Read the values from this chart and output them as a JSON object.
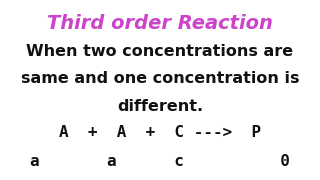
{
  "title": "Third order Reaction",
  "title_color": "#cc44cc",
  "body_lines": [
    "When two concentrations are",
    "same and one concentration is",
    "different."
  ],
  "reaction_line": "A  +  A  +  C --->  P",
  "initial_line": "a       a      c          0",
  "background_color": "#ffffff",
  "body_color": "#111111",
  "body_fontsize": 11.5,
  "title_fontsize": 14,
  "reaction_fontsize": 11.5
}
